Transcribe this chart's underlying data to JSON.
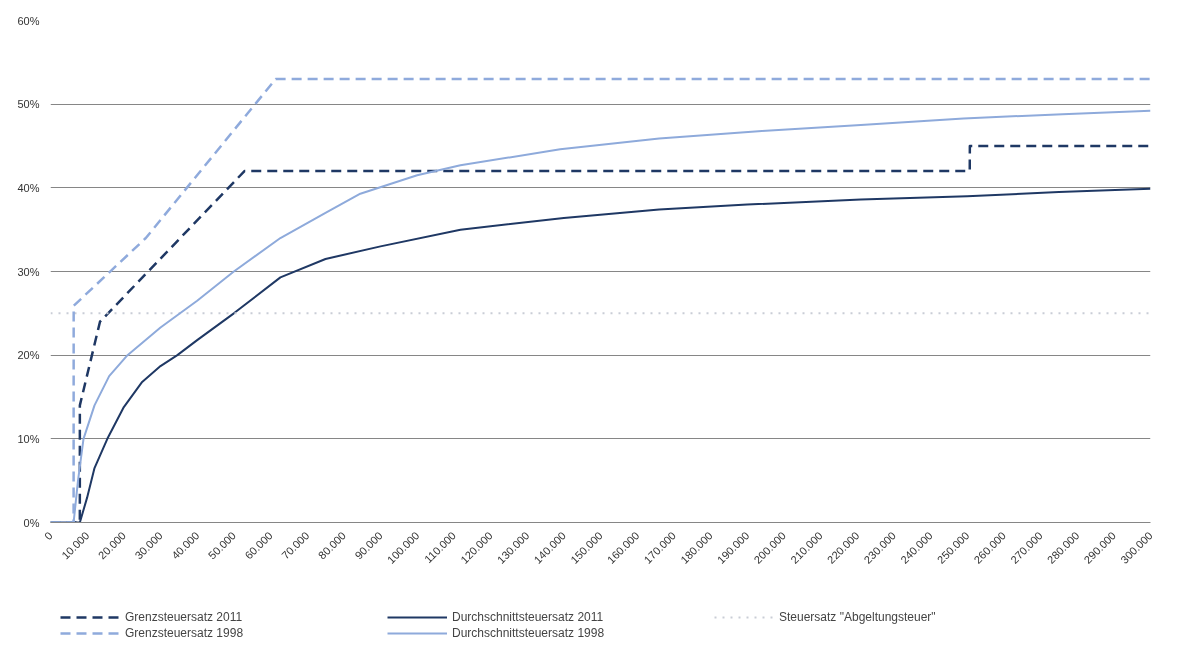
{
  "chart_data": {
    "type": "line",
    "xlim": [
      0,
      300000
    ],
    "ylim": [
      0,
      60
    ],
    "xticks": [
      {
        "value": 0,
        "label": "0"
      },
      {
        "value": 10000,
        "label": "10.000"
      },
      {
        "value": 20000,
        "label": "20.000"
      },
      {
        "value": 30000,
        "label": "30.000"
      },
      {
        "value": 40000,
        "label": "40.000"
      },
      {
        "value": 50000,
        "label": "50.000"
      },
      {
        "value": 60000,
        "label": "60.000"
      },
      {
        "value": 70000,
        "label": "70.000"
      },
      {
        "value": 80000,
        "label": "80.000"
      },
      {
        "value": 90000,
        "label": "90.000"
      },
      {
        "value": 100000,
        "label": "100.000"
      },
      {
        "value": 110000,
        "label": "110.000"
      },
      {
        "value": 120000,
        "label": "120.000"
      },
      {
        "value": 130000,
        "label": "130.000"
      },
      {
        "value": 140000,
        "label": "140.000"
      },
      {
        "value": 150000,
        "label": "150.000"
      },
      {
        "value": 160000,
        "label": "160.000"
      },
      {
        "value": 170000,
        "label": "170.000"
      },
      {
        "value": 180000,
        "label": "180.000"
      },
      {
        "value": 190000,
        "label": "190.000"
      },
      {
        "value": 200000,
        "label": "200.000"
      },
      {
        "value": 210000,
        "label": "210.000"
      },
      {
        "value": 220000,
        "label": "220.000"
      },
      {
        "value": 230000,
        "label": "230.000"
      },
      {
        "value": 240000,
        "label": "240.000"
      },
      {
        "value": 250000,
        "label": "250.000"
      },
      {
        "value": 260000,
        "label": "260.000"
      },
      {
        "value": 270000,
        "label": "270.000"
      },
      {
        "value": 280000,
        "label": "280.000"
      },
      {
        "value": 290000,
        "label": "290.000"
      },
      {
        "value": 300000,
        "label": "300.000"
      }
    ],
    "yticks": [
      {
        "value": 0,
        "label": "0%"
      },
      {
        "value": 10,
        "label": "10%"
      },
      {
        "value": 20,
        "label": "20%"
      },
      {
        "value": 30,
        "label": "30%"
      },
      {
        "value": 40,
        "label": "40%"
      },
      {
        "value": 50,
        "label": "50%"
      },
      {
        "value": 60,
        "label": "60%"
      }
    ],
    "grid": "y",
    "legend": "bottom",
    "marker": "none",
    "series": [
      {
        "name": "Grenzsteuersatz 2011",
        "color": "#1f3864",
        "line_style": "dashed",
        "x": [
          0,
          8000,
          8004,
          13500,
          52900,
          250700,
          250731,
          300000
        ],
        "values": [
          0,
          0,
          14,
          24,
          42,
          42,
          45,
          45
        ]
      },
      {
        "name": "Durchschnittsteuersatz 2011",
        "color": "#1f3864",
        "line_style": "solid",
        "x": [
          0,
          8004,
          10000,
          12000,
          15500,
          20000,
          25000,
          30000,
          34600,
          40000,
          50000,
          62700,
          75000,
          90000,
          111800,
          140000,
          166000,
          190000,
          221000,
          250000,
          275000,
          300000
        ],
        "values": [
          0,
          0,
          3,
          6.5,
          10,
          13.8,
          16.8,
          18.7,
          20,
          21.8,
          25,
          29.3,
          31.5,
          33,
          35,
          36.4,
          37.4,
          38,
          38.6,
          39,
          39.5,
          39.9
        ]
      },
      {
        "name": "Steuersatz \"Abgeltungsteuer\"",
        "color": "#c9cdd6",
        "line_style": "dotted",
        "x": [
          0,
          300000
        ],
        "values": [
          25,
          25
        ]
      },
      {
        "name": "Grenzsteuersatz 1998",
        "color": "#8faadc",
        "line_style": "dashed",
        "x": [
          0,
          6300,
          6322,
          26000,
          61400,
          300000
        ],
        "values": [
          0,
          0,
          25.9,
          34,
          53,
          53
        ]
      },
      {
        "name": "Durchschnittsteuersatz 1998",
        "color": "#8eaadb",
        "line_style": "solid",
        "x": [
          0,
          6300,
          7500,
          9000,
          12000,
          16000,
          21000,
          30000,
          40000,
          50000,
          62700,
          75000,
          84500,
          100000,
          111800,
          139000,
          166000,
          194000,
          221000,
          249000,
          276000,
          300000
        ],
        "values": [
          0,
          0,
          5,
          10,
          14,
          17.5,
          20,
          23.3,
          26.5,
          30,
          34,
          37,
          39.3,
          41.5,
          42.7,
          44.6,
          45.9,
          46.8,
          47.5,
          48.3,
          48.8,
          49.2
        ]
      }
    ]
  }
}
